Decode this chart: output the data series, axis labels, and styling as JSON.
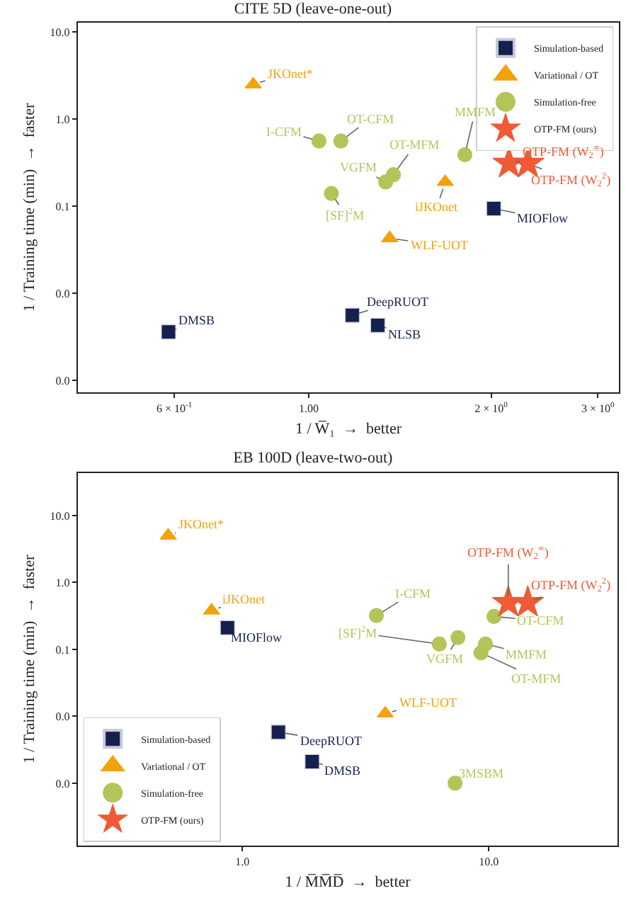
{
  "chart_data": [
    {
      "type": "scatter",
      "title": "CITE 5D (leave-one-out)",
      "xlabel": "1 / W̅₁  →  better",
      "ylabel": "1 / Training time (min)  →  faster",
      "log": "xy",
      "legend": "top right",
      "xlim": [
        0.416,
        3.25
      ],
      "ylim": [
        0.00073,
        12.8
      ],
      "xticks": [
        {
          "value": 0.6,
          "label": "6 × 10$^{-1}$"
        },
        {
          "value": 1,
          "label": "1.00"
        },
        {
          "value": 2,
          "label": "2 × 10$^{0}$"
        },
        {
          "value": 3,
          "label": "3 × 10$^{0}$"
        }
      ],
      "yticks": [
        {
          "value": 10,
          "label": "10.0"
        },
        {
          "value": 1,
          "label": "1.0"
        },
        {
          "value": 0.1,
          "label": "0.1"
        },
        {
          "value": 0.01,
          "label": "0.0"
        },
        {
          "value": 0.001,
          "label": "0.0"
        }
      ],
      "series": [
        {
          "name": "Simulation-based",
          "color": "#14214f",
          "marker": "square",
          "x": [
            0.587,
            1.18,
            1.3,
            2.02
          ],
          "values": [
            0.0036,
            0.0056,
            0.0043,
            0.094
          ]
        },
        {
          "name": "Variational / OT",
          "color": "#f2a20c",
          "marker": "triangle",
          "x": [
            0.81,
            1.68,
            1.36
          ],
          "values": [
            2.5,
            0.19,
            0.043
          ]
        },
        {
          "name": "Simulation-free",
          "color": "#b5c458",
          "marker": "circle",
          "x": [
            1.04,
            1.13,
            1.09,
            1.34,
            1.38,
            1.81
          ],
          "values": [
            0.56,
            0.56,
            0.14,
            0.19,
            0.23,
            0.39
          ]
        },
        {
          "name": "OTP-FM (ours)",
          "color": "#f05a35",
          "marker": "star",
          "x": [
            2.14,
            2.3
          ],
          "values": [
            0.31,
            0.31
          ]
        }
      ],
      "annotations": [
        {
          "text": "JKOnet*",
          "x": 0.81,
          "y": 2.5
        },
        {
          "text": "I-CFM",
          "x": 1.04,
          "y": 0.56
        },
        {
          "text": "OT-CFM",
          "x": 1.13,
          "y": 0.56
        },
        {
          "text": "[SF]$^{2}$M",
          "x": 1.09,
          "y": 0.14
        },
        {
          "text": "VGFM",
          "x": 1.34,
          "y": 0.19
        },
        {
          "text": "OT-MFM",
          "x": 1.38,
          "y": 0.23
        },
        {
          "text": "MMFM",
          "x": 1.81,
          "y": 0.39
        },
        {
          "text": "iJKOnet",
          "x": 1.68,
          "y": 0.19
        },
        {
          "text": "MIOFlow",
          "x": 2.02,
          "y": 0.094
        },
        {
          "text": "OTP-FM (W$_{2}$$^{∞}$)",
          "x": 2.14,
          "y": 0.31
        },
        {
          "text": "OTP-FM (W$_{2}$$^{2}$)",
          "x": 2.3,
          "y": 0.31
        },
        {
          "text": "WLF-UOT",
          "x": 1.36,
          "y": 0.043
        },
        {
          "text": "DeepRUOT",
          "x": 1.18,
          "y": 0.0056
        },
        {
          "text": "NLSB",
          "x": 1.3,
          "y": 0.0043
        },
        {
          "text": "DMSB",
          "x": 0.587,
          "y": 0.0036
        }
      ]
    },
    {
      "type": "scatter",
      "title": "EB 100D (leave-two-out)",
      "xlabel": "1 / M̅M̅D̅  →  better",
      "ylabel": "1 / Training time (min)  →  faster",
      "log": "xy",
      "legend": "bottom left",
      "xlim": [
        0.215,
        33.3
      ],
      "ylim": [
        0.000117,
        43
      ],
      "xticks": [
        {
          "value": 1,
          "label": "1.0"
        },
        {
          "value": 10,
          "label": "10.0"
        }
      ],
      "yticks": [
        {
          "value": 10,
          "label": "10.0"
        },
        {
          "value": 1,
          "label": "1.0"
        },
        {
          "value": 0.1,
          "label": "0.1"
        },
        {
          "value": 0.01,
          "label": "0.0"
        },
        {
          "value": 0.001,
          "label": "0.0"
        }
      ],
      "series": [
        {
          "name": "Simulation-based",
          "color": "#14214f",
          "marker": "square",
          "x": [
            0.87,
            1.4,
            1.92
          ],
          "values": [
            0.21,
            0.0058,
            0.0021
          ]
        },
        {
          "name": "Variational / OT",
          "color": "#f2a20c",
          "marker": "triangle",
          "x": [
            0.5,
            0.75,
            3.8
          ],
          "values": [
            5.0,
            0.38,
            0.011
          ]
        },
        {
          "name": "Simulation-free",
          "color": "#b5c458",
          "marker": "circle",
          "x": [
            3.5,
            6.3,
            7.5,
            9.7,
            9.3,
            10.5,
            7.3
          ],
          "values": [
            0.32,
            0.12,
            0.15,
            0.12,
            0.089,
            0.31,
            0.001
          ]
        },
        {
          "name": "OTP-FM (ours)",
          "color": "#f05a35",
          "marker": "star",
          "x": [
            12.0,
            14.4
          ],
          "values": [
            0.5,
            0.5
          ]
        }
      ],
      "annotations": [
        {
          "text": "JKOnet*",
          "x": 0.5,
          "y": 5.0
        },
        {
          "text": "iJKOnet",
          "x": 0.75,
          "y": 0.38
        },
        {
          "text": "MIOFlow",
          "x": 0.87,
          "y": 0.21
        },
        {
          "text": "I-CFM",
          "x": 3.5,
          "y": 0.32
        },
        {
          "text": "[SF]$^{2}$M",
          "x": 6.3,
          "y": 0.12
        },
        {
          "text": "VGFM",
          "x": 7.5,
          "y": 0.15
        },
        {
          "text": "MMFM",
          "x": 9.7,
          "y": 0.12
        },
        {
          "text": "OT-MFM",
          "x": 9.3,
          "y": 0.089
        },
        {
          "text": "OT-CFM",
          "x": 10.5,
          "y": 0.31
        },
        {
          "text": "OTP-FM (W$_{2}$$^{∞}$)",
          "x": 12.0,
          "y": 0.5
        },
        {
          "text": "OTP-FM (W$_{2}$$^{2}$)",
          "x": 14.4,
          "y": 0.5
        },
        {
          "text": "WLF-UOT",
          "x": 3.8,
          "y": 0.011
        },
        {
          "text": "DeepRUOT",
          "x": 1.4,
          "y": 0.0058
        },
        {
          "text": "DMSB",
          "x": 1.92,
          "y": 0.0021
        },
        {
          "text": "3MSBM",
          "x": 7.3,
          "y": 0.001
        }
      ]
    }
  ]
}
